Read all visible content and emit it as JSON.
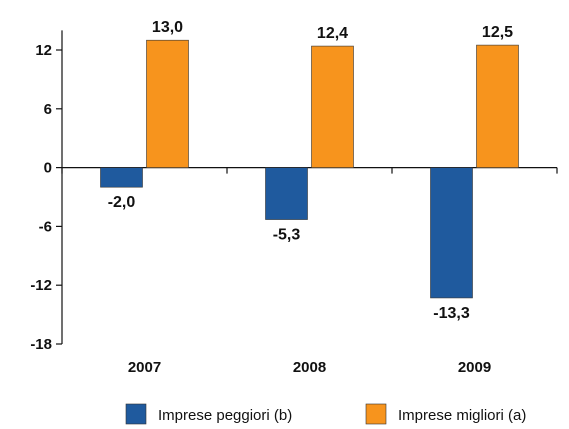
{
  "chart_data": {
    "type": "bar",
    "categories": [
      "2007",
      "2008",
      "2009"
    ],
    "series": [
      {
        "name": "Imprese peggiori (b)",
        "color": "#1f5a9e",
        "values": [
          -2.0,
          -5.3,
          -13.3
        ],
        "labels": [
          "-2,0",
          "-5,3",
          "-13,3"
        ]
      },
      {
        "name": "Imprese migliori (a)",
        "color": "#f7941d",
        "values": [
          13.0,
          12.4,
          12.5
        ],
        "labels": [
          "13,0",
          "12,4",
          "12,5"
        ]
      }
    ],
    "ylim": [
      -18,
      14
    ],
    "yticks": [
      12,
      6,
      0,
      -6,
      -12,
      -18
    ],
    "ytick_labels": [
      "12",
      "6",
      "0",
      "-6",
      "-12",
      "-18"
    ],
    "title": "",
    "xlabel": "",
    "ylabel": "",
    "grid": false,
    "legend_position": "bottom-right"
  }
}
